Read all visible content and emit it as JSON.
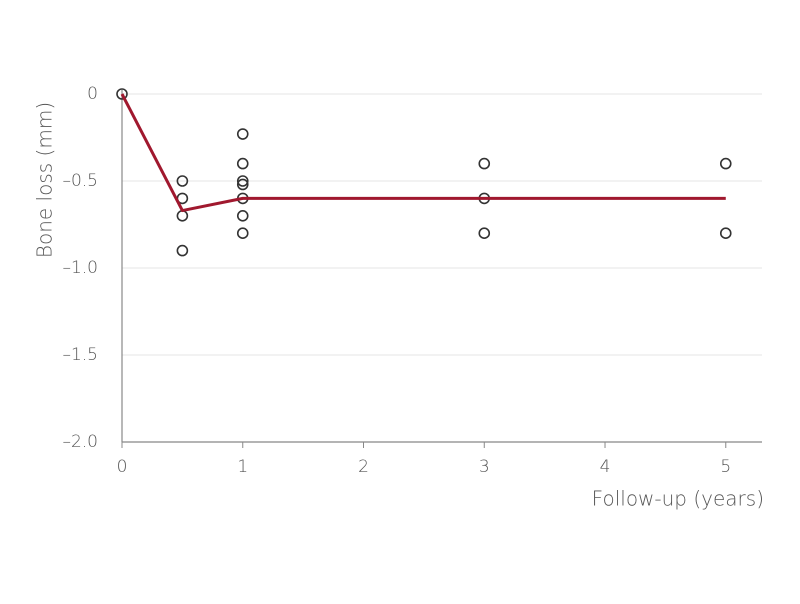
{
  "chart_data": {
    "type": "scatter",
    "xlabel": "Follow-up (years)",
    "ylabel": "Bone loss (mm)",
    "xlim": [
      0,
      5.3
    ],
    "xticks": [
      0,
      1,
      2,
      3,
      4,
      5
    ],
    "ylim": [
      -2,
      0
    ],
    "yticks": [
      0,
      {
        "value": -0.5,
        "label": "–0.5"
      },
      {
        "value": -1.0,
        "label": "–1.0"
      },
      {
        "value": -1.5,
        "label": "–1.5"
      },
      {
        "value": -2.0,
        "label": "–2.0"
      }
    ],
    "grid": true,
    "series": [
      {
        "type": "scatter",
        "color": "#333333",
        "x": [
          0,
          0.5,
          0.5,
          0.5,
          0.5,
          1,
          1,
          1,
          1,
          1,
          1,
          1,
          3,
          3,
          3,
          5,
          5
        ],
        "values": [
          0,
          -0.5,
          -0.6,
          -0.7,
          -0.9,
          -0.23,
          -0.4,
          -0.5,
          -0.52,
          -0.6,
          -0.7,
          -0.8,
          -0.4,
          -0.6,
          -0.8,
          -0.4,
          -0.8
        ]
      },
      {
        "type": "line",
        "color": "#a0182e",
        "x": [
          0,
          0.5,
          1,
          3,
          5
        ],
        "values": [
          0,
          -0.67,
          -0.6,
          -0.6,
          -0.6
        ]
      }
    ]
  }
}
